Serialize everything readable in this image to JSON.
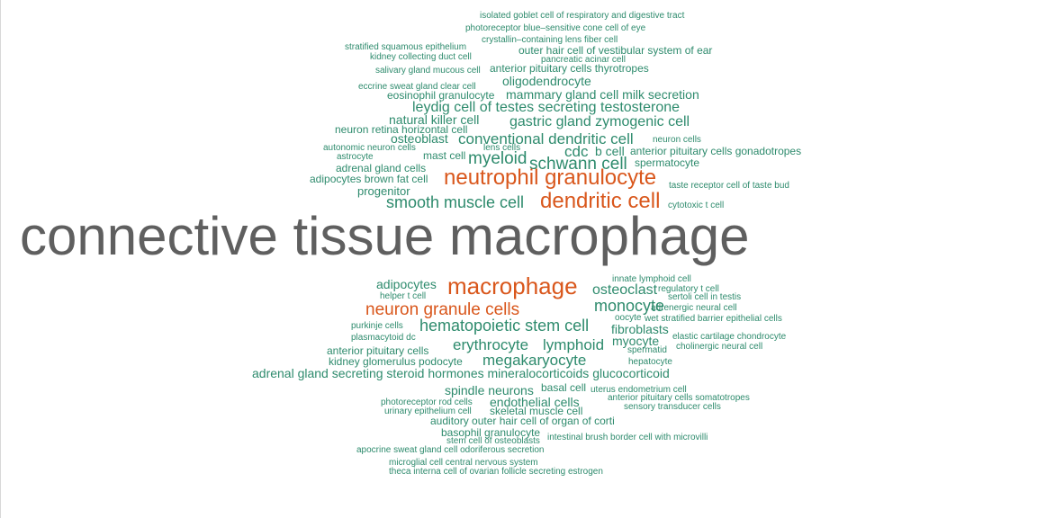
{
  "word_cloud": {
    "colors": {
      "default": "#2e8b6d",
      "highlight": "#d9571c",
      "dominant": "#5f5f5f"
    },
    "words": [
      {
        "text": "isolated goblet cell of respiratory and digestive tract"
      },
      {
        "text": "photoreceptor blue–sensitive cone cell of eye"
      },
      {
        "text": "crystallin–containing lens fiber cell"
      },
      {
        "text": "stratified squamous epithelium"
      },
      {
        "text": "outer hair cell of vestibular system of ear"
      },
      {
        "text": "kidney collecting duct cell"
      },
      {
        "text": "pancreatic acinar cell"
      },
      {
        "text": "salivary gland mucous cell"
      },
      {
        "text": "anterior pituitary cells thyrotropes"
      },
      {
        "text": "oligodendrocyte"
      },
      {
        "text": "eccrine sweat gland clear cell"
      },
      {
        "text": "eosinophil granulocyte"
      },
      {
        "text": "mammary gland cell milk secretion"
      },
      {
        "text": "leydig cell of testes secreting testosterone"
      },
      {
        "text": "natural killer cell"
      },
      {
        "text": "gastric gland zymogenic cell"
      },
      {
        "text": "neuron retina horizontal cell"
      },
      {
        "text": "osteoblast"
      },
      {
        "text": "conventional dendritic cell"
      },
      {
        "text": "neuron cells"
      },
      {
        "text": "autonomic neuron cells"
      },
      {
        "text": "lens cells"
      },
      {
        "text": "cdc"
      },
      {
        "text": "b cell"
      },
      {
        "text": "anterior pituitary cells gonadotropes"
      },
      {
        "text": "astrocyte"
      },
      {
        "text": "mast cell"
      },
      {
        "text": "myeloid"
      },
      {
        "text": "schwann cell"
      },
      {
        "text": "spermatocyte"
      },
      {
        "text": "adrenal gland cells"
      },
      {
        "text": "adipocytes brown fat cell"
      },
      {
        "text": "neutrophil granulocyte"
      },
      {
        "text": "taste receptor cell of taste bud"
      },
      {
        "text": "progenitor"
      },
      {
        "text": "smooth muscle cell"
      },
      {
        "text": "dendritic cell"
      },
      {
        "text": "cytotoxic t cell"
      },
      {
        "text": "connective tissue macrophage"
      },
      {
        "text": "innate lymphoid cell"
      },
      {
        "text": "adipocytes"
      },
      {
        "text": "macrophage"
      },
      {
        "text": "osteoclast"
      },
      {
        "text": "regulatory t cell"
      },
      {
        "text": "helper t cell"
      },
      {
        "text": "sertoli cell in testis"
      },
      {
        "text": "neuron granule cells"
      },
      {
        "text": "monocyte"
      },
      {
        "text": "adrenergic neural cell"
      },
      {
        "text": "oocyte"
      },
      {
        "text": "wet stratified barrier epithelial cells"
      },
      {
        "text": "purkinje cells"
      },
      {
        "text": "hematopoietic stem cell"
      },
      {
        "text": "fibroblasts"
      },
      {
        "text": "plasmacytoid dc"
      },
      {
        "text": "spermatid"
      },
      {
        "text": "elastic cartilage chondrocyte"
      },
      {
        "text": "erythrocyte"
      },
      {
        "text": "lymphoid"
      },
      {
        "text": "myocyte"
      },
      {
        "text": "anterior pituitary cells"
      },
      {
        "text": "cholinergic neural cell"
      },
      {
        "text": "kidney glomerulus podocyte"
      },
      {
        "text": "megakaryocyte"
      },
      {
        "text": "hepatocyte"
      },
      {
        "text": "adrenal gland secreting steroid hormones mineralocorticoids glucocorticoid"
      },
      {
        "text": "spindle neurons"
      },
      {
        "text": "basal cell"
      },
      {
        "text": "uterus endometrium cell"
      },
      {
        "text": "photoreceptor rod cells"
      },
      {
        "text": "endothelial cells"
      },
      {
        "text": "anterior pituitary cells somatotropes"
      },
      {
        "text": "urinary epithelium cell"
      },
      {
        "text": "skeletal muscle cell"
      },
      {
        "text": "sensory transducer cells"
      },
      {
        "text": "auditory outer hair cell of organ of corti"
      },
      {
        "text": "basophil granulocyte"
      },
      {
        "text": "stem cell of osteoblasts"
      },
      {
        "text": "intestinal brush border cell with microvilli"
      },
      {
        "text": "apocrine sweat gland cell odoriferous secretion"
      },
      {
        "text": "microglial cell central nervous system"
      },
      {
        "text": "theca interna cell of ovarian follicle secreting estrogen"
      }
    ]
  }
}
